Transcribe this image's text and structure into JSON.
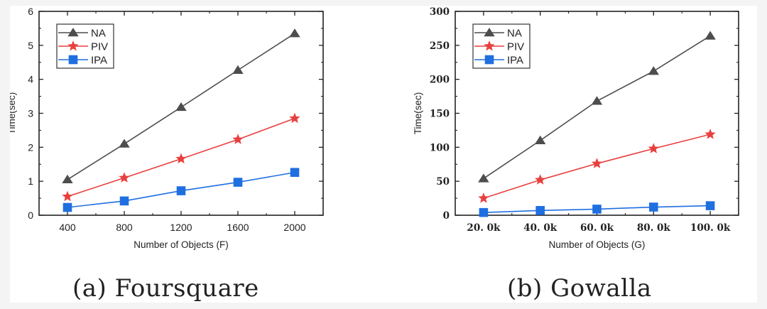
{
  "chart_data": [
    {
      "id": "foursquare",
      "type": "line",
      "caption": "(a) Foursquare",
      "xlabel": "Number of Objects (F)",
      "ylabel": "Time(sec)",
      "x": [
        400,
        800,
        1200,
        1600,
        2000
      ],
      "x_tick_labels": [
        "400",
        "800",
        "1200",
        "1600",
        "2000"
      ],
      "xlim": [
        200,
        2200
      ],
      "ylim": [
        0,
        6
      ],
      "y_ticks": [
        0,
        1,
        2,
        3,
        4,
        5,
        6
      ],
      "y_tick_labels": [
        "0",
        "1",
        "2",
        "3",
        "4",
        "5",
        "6"
      ],
      "grid": false,
      "legend_position": "top-left",
      "series": [
        {
          "name": "NA",
          "marker": "triangle",
          "color": "#4d4d4d",
          "values": [
            1.05,
            2.1,
            3.18,
            4.27,
            5.35
          ]
        },
        {
          "name": "PIV",
          "marker": "star",
          "color": "#e8403f",
          "values": [
            0.55,
            1.1,
            1.66,
            2.23,
            2.85
          ]
        },
        {
          "name": "IPA",
          "marker": "square",
          "color": "#1f6fe0",
          "values": [
            0.23,
            0.42,
            0.72,
            0.97,
            1.26
          ]
        }
      ]
    },
    {
      "id": "gowalla",
      "type": "line",
      "caption": "(b) Gowalla",
      "xlabel": "Number of Objects (G)",
      "ylabel": "Time(sec)",
      "x": [
        20000,
        40000,
        60000,
        80000,
        100000
      ],
      "x_tick_labels": [
        "20. 0k",
        "40. 0k",
        "60. 0k",
        "80. 0k",
        "100. 0k"
      ],
      "xlim": [
        10000,
        110000
      ],
      "ylim": [
        0,
        300
      ],
      "y_ticks": [
        0,
        50,
        100,
        150,
        200,
        250,
        300
      ],
      "y_tick_labels": [
        "0",
        "50",
        "100",
        "150",
        "200",
        "250",
        "300"
      ],
      "grid": false,
      "legend_position": "top-left",
      "series": [
        {
          "name": "NA",
          "marker": "triangle",
          "color": "#4d4d4d",
          "values": [
            54,
            110,
            168,
            212,
            264
          ]
        },
        {
          "name": "PIV",
          "marker": "star",
          "color": "#e8403f",
          "values": [
            25,
            52,
            76,
            98,
            119
          ]
        },
        {
          "name": "IPA",
          "marker": "square",
          "color": "#1f6fe0",
          "values": [
            4,
            7,
            9,
            12,
            14
          ]
        }
      ]
    }
  ]
}
